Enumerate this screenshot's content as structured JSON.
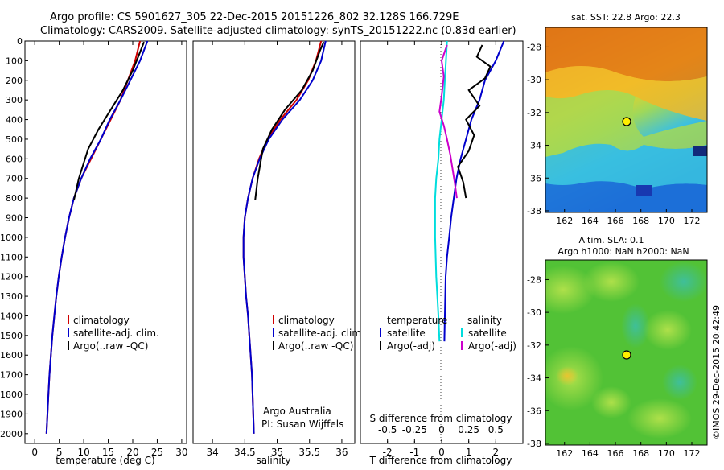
{
  "header": {
    "line1": "Argo profile: CS 5901627_305 22-Dec-2015 20151226_802 32.128S 166.729E",
    "line2": "Climatology: CARS2009. Satellite-adjusted climatology: synTS_20151222.nc (0.83d earlier)"
  },
  "colors": {
    "climatology": "#d00000",
    "satellite": "#0000cc",
    "argo": "#000000",
    "salinity_sat": "#00dddd",
    "salinity_argo": "#cc00cc"
  },
  "panel_temp": {
    "xlabel": "temperature (deg C)",
    "legend": [
      "climatology",
      "satellite-adj. clim.",
      "Argo(..raw -QC)"
    ]
  },
  "panel_sal": {
    "xlabel": "salinity",
    "legend": [
      "climatology",
      "satellite-adj. clim.",
      "Argo(..raw -QC)"
    ],
    "credit1": "Argo Australia",
    "credit2": "PI: Susan Wijffels"
  },
  "panel_diff": {
    "xlabel_bottom": "T difference from climatology",
    "xlabel_top": "S difference from climatology",
    "legend_temp_title": "temperature",
    "legend_sal_title": "salinity",
    "legend_items": [
      "satellite",
      "Argo(-adj)"
    ]
  },
  "map_sst": {
    "title": "sat. SST: 22.8 Argo: 22.3"
  },
  "map_sla": {
    "title1": "Altim. SLA: 0.1",
    "title2": "Argo h1000: NaN h2000: NaN"
  },
  "side_label": "©IMOS 29-Dec-2015 20:42:49",
  "chart_data": [
    {
      "type": "line",
      "title": "",
      "xlabel": "temperature (deg C)",
      "ylabel": "",
      "xlim": [
        -2,
        31
      ],
      "ylim": [
        0,
        2050
      ],
      "y_reversed": true,
      "xticks": [
        0,
        5,
        10,
        15,
        20,
        25,
        30
      ],
      "yticks": [
        0,
        100,
        200,
        300,
        400,
        500,
        600,
        700,
        800,
        900,
        1000,
        1100,
        1200,
        1300,
        1400,
        1500,
        1600,
        1700,
        1800,
        1900,
        2000
      ],
      "series": [
        {
          "name": "climatology",
          "color": "#d00000",
          "x": [
            21.5,
            20.5,
            19.0,
            17.5,
            15.5,
            13.5,
            11.5,
            9.5,
            8.0,
            7.0,
            6.2,
            5.5,
            4.9,
            4.4,
            4.0,
            3.6,
            3.3,
            3.0,
            2.8,
            2.6,
            2.4
          ],
          "y": [
            0,
            100,
            200,
            300,
            400,
            500,
            600,
            700,
            800,
            900,
            1000,
            1100,
            1200,
            1300,
            1400,
            1500,
            1600,
            1700,
            1800,
            1900,
            2000
          ]
        },
        {
          "name": "satellite-adj. clim.",
          "color": "#0000cc",
          "x": [
            23.0,
            21.5,
            19.5,
            17.5,
            15.3,
            13.5,
            11.3,
            9.5,
            8.0,
            7.0,
            6.2,
            5.5,
            4.9,
            4.4,
            4.0,
            3.6,
            3.3,
            3.0,
            2.8,
            2.6,
            2.4
          ],
          "y": [
            0,
            100,
            200,
            300,
            400,
            500,
            600,
            700,
            800,
            900,
            1000,
            1100,
            1200,
            1300,
            1400,
            1500,
            1600,
            1700,
            1800,
            1900,
            2000
          ]
        },
        {
          "name": "Argo(..raw -QC)",
          "color": "#000000",
          "x": [
            22.3,
            21.6,
            20.0,
            18.0,
            15.5,
            13.0,
            10.9,
            9.0,
            8.0
          ],
          "y": [
            5,
            50,
            150,
            250,
            350,
            450,
            550,
            700,
            810
          ]
        }
      ]
    },
    {
      "type": "line",
      "title": "",
      "xlabel": "salinity",
      "ylabel": "",
      "xlim": [
        33.7,
        36.2
      ],
      "ylim": [
        0,
        2050
      ],
      "y_reversed": true,
      "xticks": [
        34,
        34.5,
        35,
        35.5,
        36
      ],
      "series": [
        {
          "name": "climatology",
          "color": "#d00000",
          "x": [
            35.68,
            35.6,
            35.48,
            35.3,
            35.05,
            34.85,
            34.72,
            34.62,
            34.55,
            34.5,
            34.48,
            34.48,
            34.5,
            34.52,
            34.55,
            34.57,
            34.59,
            34.61,
            34.62,
            34.63,
            34.64
          ],
          "y": [
            0,
            100,
            200,
            300,
            400,
            500,
            600,
            700,
            800,
            900,
            1000,
            1100,
            1200,
            1300,
            1400,
            1500,
            1600,
            1700,
            1800,
            1900,
            2000
          ]
        },
        {
          "name": "satellite-adj. clim.",
          "color": "#0000cc",
          "x": [
            35.75,
            35.68,
            35.55,
            35.35,
            35.08,
            34.87,
            34.73,
            34.62,
            34.55,
            34.5,
            34.48,
            34.48,
            34.5,
            34.52,
            34.55,
            34.57,
            34.59,
            34.61,
            34.62,
            34.63,
            34.64
          ],
          "y": [
            0,
            100,
            200,
            300,
            400,
            500,
            600,
            700,
            800,
            900,
            1000,
            1100,
            1200,
            1300,
            1400,
            1500,
            1600,
            1700,
            1800,
            1900,
            2000
          ]
        },
        {
          "name": "Argo(..raw -QC)",
          "color": "#000000",
          "x": [
            35.72,
            35.66,
            35.55,
            35.38,
            35.12,
            34.92,
            34.78,
            34.7,
            34.66
          ],
          "y": [
            5,
            50,
            150,
            250,
            350,
            450,
            550,
            700,
            810
          ]
        }
      ]
    },
    {
      "type": "line",
      "title": "",
      "xlabel": "T difference from climatology",
      "ylabel": "",
      "xlim": [
        -3,
        3
      ],
      "ylim": [
        0,
        2050
      ],
      "y_reversed": true,
      "xticks": [
        -2,
        -1,
        0,
        1,
        2
      ],
      "top_xlabel": "S difference from climatology",
      "top_xticks": [
        -0.5,
        -0.25,
        0,
        0.25,
        0.5
      ],
      "series": [
        {
          "name": "temperature satellite",
          "color": "#0000cc",
          "x": [
            2.3,
            2.0,
            1.6,
            1.4,
            1.1,
            0.9,
            0.7,
            0.55,
            0.45,
            0.35,
            0.28,
            0.2,
            0.15,
            0.12,
            0.1
          ],
          "y": [
            0,
            100,
            200,
            300,
            400,
            500,
            600,
            700,
            800,
            900,
            1000,
            1100,
            1200,
            1400,
            1530
          ]
        },
        {
          "name": "temperature Argo(-adj)",
          "color": "#000000",
          "x": [
            1.5,
            1.3,
            1.8,
            1.6,
            1.0,
            1.4,
            0.9,
            1.2,
            1.0,
            0.6,
            0.8,
            0.9
          ],
          "y": [
            20,
            80,
            130,
            190,
            250,
            330,
            400,
            480,
            560,
            640,
            720,
            800
          ]
        },
        {
          "name": "salinity satellite",
          "color": "#00dddd",
          "x": [
            0.05,
            0.04,
            0.03,
            0.02,
            0.0,
            -0.02,
            -0.03,
            -0.05,
            -0.06,
            -0.06,
            -0.05,
            -0.03,
            -0.02
          ],
          "y": [
            0,
            100,
            200,
            300,
            400,
            500,
            600,
            700,
            800,
            1000,
            1200,
            1400,
            1530
          ]
        },
        {
          "name": "salinity Argo(-adj)",
          "color": "#cc00cc",
          "x": [
            0.05,
            0.0,
            0.02,
            0.0,
            -0.02,
            0.02,
            0.05,
            0.08,
            0.1,
            0.12,
            0.14
          ],
          "y": [
            20,
            100,
            180,
            280,
            360,
            430,
            500,
            580,
            650,
            720,
            800
          ]
        }
      ]
    }
  ]
}
